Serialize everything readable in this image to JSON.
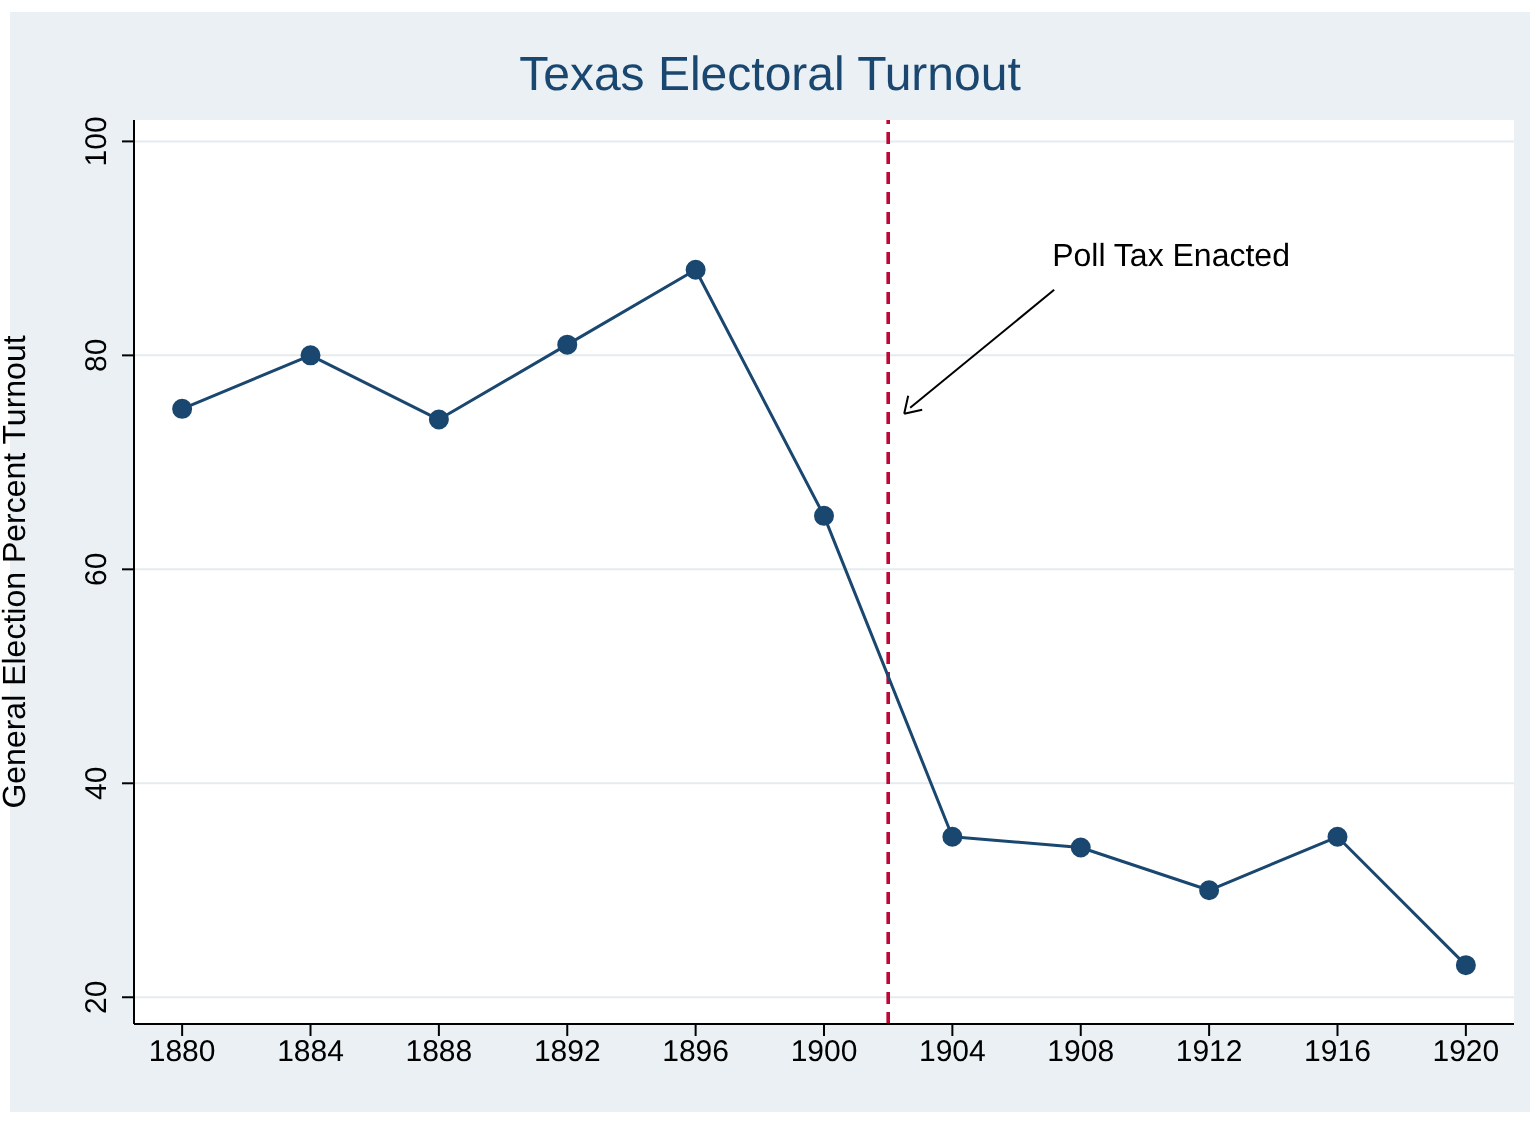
{
  "chart_data": {
    "type": "line",
    "title": "Texas Electoral Turnout",
    "ylabel": "General Election Percent Turnout",
    "x": [
      1880,
      1884,
      1888,
      1892,
      1896,
      1900,
      1904,
      1908,
      1912,
      1916,
      1920
    ],
    "series": [
      {
        "color": "#1a476f",
        "values": [
          75,
          80,
          74,
          81,
          88,
          65,
          35,
          34,
          30,
          35,
          23
        ]
      }
    ],
    "xlim": [
      1878.5,
      1921.5
    ],
    "xticks": [
      1880,
      1884,
      1888,
      1892,
      1896,
      1900,
      1904,
      1908,
      1912,
      1916,
      1920
    ],
    "ylim": [
      17.5,
      102
    ],
    "yticks": [
      20,
      40,
      60,
      80,
      100
    ],
    "ref_lines": [
      {
        "axis": "x",
        "value": 1902,
        "color": "#c10534",
        "line_style": "dashed"
      }
    ],
    "annotations": [
      "Poll Tax Enacted"
    ],
    "grid": "y",
    "marker": "circle",
    "line_style": "solid"
  }
}
